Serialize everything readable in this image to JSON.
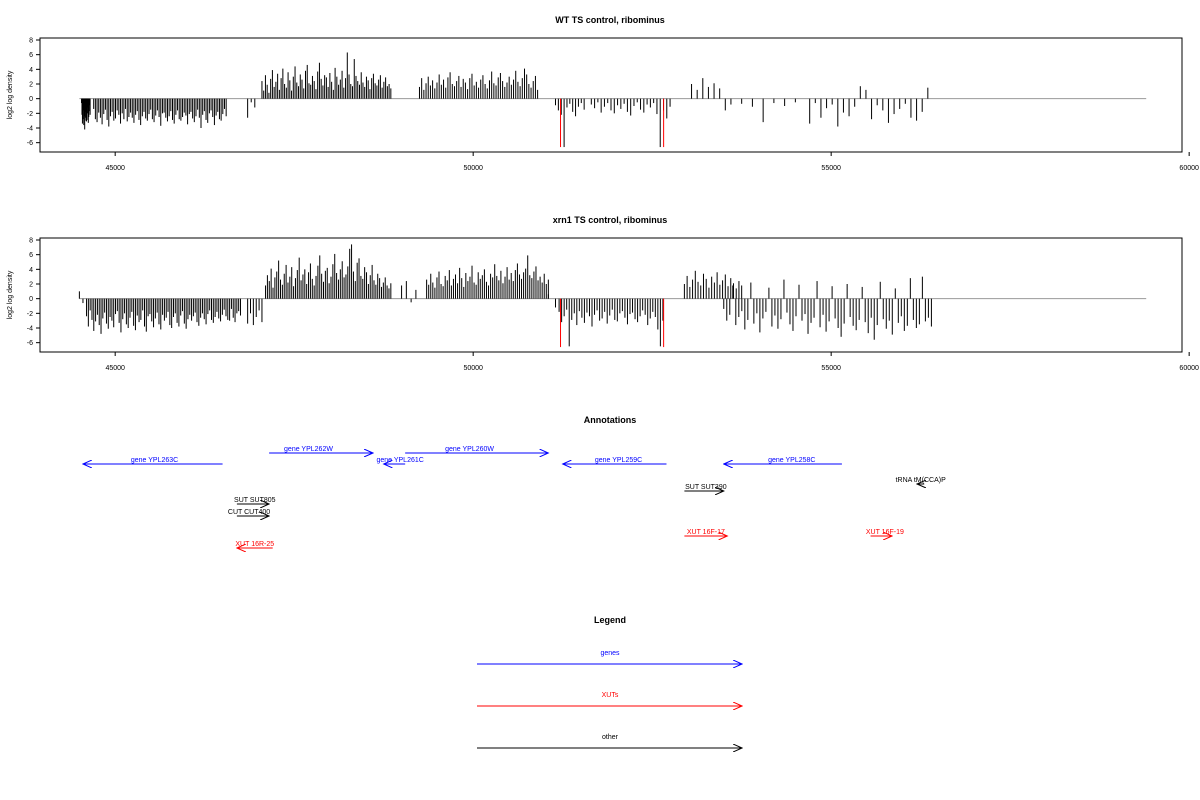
{
  "chart_data": [
    {
      "type": "bar",
      "title": "WT TS control, ribominus",
      "ylabel": "log2 log density",
      "xlabel": "",
      "xlim": [
        43950,
        59900
      ],
      "ylim": [
        -7,
        8
      ],
      "xticks": [
        45000,
        50000,
        55000,
        60000
      ],
      "yticks": [
        -6,
        -4,
        -2,
        0,
        2,
        4,
        6,
        8
      ],
      "baseline_x": [
        44500,
        59400
      ],
      "series": [
        {
          "x_start": 44530,
          "x_end": 44650,
          "values": [
            -0.6,
            -2.2,
            -3.4,
            -2.8,
            -1.6,
            -3.6,
            -2.4,
            -4.2,
            -3.0,
            -1.8,
            -2.6,
            -3.1,
            -2.0,
            -1.2,
            -2.9,
            -3.3,
            -2.5,
            -1.7,
            -0.9,
            -2.2
          ]
        },
        {
          "x_start": 44700,
          "x_end": 46550,
          "values": [
            -1.4,
            -2.8,
            -3.2,
            -1.9,
            -2.6,
            -3.5,
            -2.1,
            -1.5,
            -2.9,
            -3.8,
            -2.4,
            -1.8,
            -3.0,
            -2.7,
            -1.6,
            -2.2,
            -3.4,
            -2.0,
            -2.8,
            -1.4,
            -3.1,
            -2.5,
            -1.9,
            -2.6,
            -3.3,
            -2.2,
            -1.7,
            -2.9,
            -3.6,
            -2.4,
            -1.8,
            -2.7,
            -3.0,
            -2.1,
            -1.5,
            -2.8,
            -3.2,
            -2.3,
            -1.6,
            -2.5,
            -3.7,
            -2.0,
            -1.9,
            -2.6,
            -3.1,
            -2.4,
            -1.7,
            -2.9,
            -3.4,
            -2.2,
            -1.6,
            -2.8,
            -3.0,
            -2.5,
            -1.9,
            -2.3,
            -3.5,
            -2.1,
            -1.8,
            -2.7,
            -3.2,
            -2.4,
            -1.5,
            -2.6,
            -4.0,
            -2.2,
            -1.7,
            -2.9,
            -3.3,
            -2.0,
            -1.6,
            -2.5,
            -3.6,
            -2.3,
            -1.8,
            -2.8,
            -3.0,
            -2.1,
            -1.4,
            -2.4
          ]
        },
        {
          "x_start": 46850,
          "x_end": 46950,
          "values": [
            -2.6,
            -0.5,
            -1.2
          ]
        },
        {
          "x_start": 47050,
          "x_end": 48850,
          "values": [
            2.4,
            1.1,
            3.2,
            1.9,
            0.8,
            2.7,
            3.9,
            1.6,
            2.3,
            3.4,
            1.2,
            2.8,
            4.1,
            2.0,
            1.5,
            3.6,
            2.5,
            1.1,
            3.0,
            4.4,
            2.2,
            1.7,
            3.3,
            2.6,
            1.4,
            3.8,
            4.6,
            2.1,
            1.9,
            3.1,
            2.4,
            1.3,
            3.7,
            4.9,
            2.7,
            1.8,
            3.2,
            2.9,
            1.6,
            3.5,
            2.3,
            1.2,
            4.2,
            3.0,
            1.9,
            2.6,
            3.8,
            1.5,
            2.8,
            6.3,
            3.3,
            2.0,
            1.7,
            5.4,
            3.1,
            2.4,
            1.9,
            3.6,
            2.2,
            1.6,
            3.0,
            2.5,
            1.3,
            2.8,
            3.4,
            2.1,
            1.8,
            2.6,
            3.2,
            1.5,
            2.3,
            2.9,
            1.7,
            2.0,
            1.4
          ]
        },
        {
          "x_start": 49250,
          "x_end": 50900,
          "values": [
            1.6,
            2.8,
            1.2,
            2.1,
            3.0,
            1.8,
            2.5,
            1.4,
            2.2,
            3.3,
            1.9,
            2.6,
            1.5,
            2.9,
            3.6,
            2.0,
            1.7,
            2.4,
            3.1,
            1.6,
            2.7,
            2.2,
            1.3,
            2.8,
            3.4,
            1.8,
            2.3,
            1.5,
            2.6,
            3.2,
            2.0,
            1.4,
            2.5,
            3.7,
            2.1,
            1.8,
            2.9,
            3.5,
            2.4,
            1.6,
            2.2,
            3.0,
            1.9,
            2.6,
            3.8,
            2.3,
            1.7,
            2.8,
            4.1,
            3.3,
            2.0,
            1.5,
            2.4,
            3.1,
            1.2
          ]
        },
        {
          "x_start": 51150,
          "x_end": 51550,
          "values": [
            -0.9,
            -1.6,
            -2.2,
            -6.6,
            -1.2,
            -0.7,
            -1.8,
            -2.4,
            -1.1,
            -0.6,
            -1.5
          ]
        },
        {
          "x_start": 51650,
          "x_end": 52750,
          "values": [
            -0.8,
            -1.3,
            -0.5,
            -1.9,
            -1.1,
            -0.6,
            -1.6,
            -2.0,
            -0.9,
            -1.4,
            -0.7,
            -1.8,
            -2.3,
            -1.0,
            -0.5,
            -1.5,
            -1.9,
            -0.8,
            -1.2,
            -0.6,
            -2.1,
            -6.6,
            -1.6,
            -2.7,
            -1.1
          ]
        },
        {
          "x_start": 53050,
          "x_end": 53600,
          "values": [
            2.0,
            1.2,
            2.8,
            1.6,
            2.1,
            1.4,
            -1.6,
            -0.8
          ]
        },
        {
          "x_start": 53750,
          "x_end": 54500,
          "values": [
            -0.7,
            -1.1,
            -3.2,
            -0.6,
            -1.0,
            -0.5
          ]
        },
        {
          "x_start": 54700,
          "x_end": 56350,
          "values": [
            -3.4,
            -0.6,
            -2.6,
            -1.3,
            -0.8,
            -3.8,
            -1.9,
            -2.4,
            -1.1,
            1.7,
            1.2,
            -2.8,
            -0.9,
            -1.6,
            -3.3,
            -2.1,
            -1.4,
            -0.7,
            -2.6,
            -3.0,
            -1.8,
            1.5
          ]
        }
      ],
      "highlight_bars": {
        "color": "#ff0000",
        "x": [
          51220,
          52660
        ],
        "values": [
          -6.6,
          -6.6
        ]
      }
    },
    {
      "type": "bar",
      "title": "xrn1 TS control, ribominus",
      "ylabel": "log2 log density",
      "xlabel": "",
      "xlim": [
        43950,
        59900
      ],
      "ylim": [
        -7,
        8
      ],
      "xticks": [
        45000,
        50000,
        55000,
        60000
      ],
      "yticks": [
        -6,
        -4,
        -2,
        0,
        2,
        4,
        6,
        8
      ],
      "baseline_x": [
        44500,
        59400
      ],
      "series": [
        {
          "x_start": 44500,
          "x_end": 44550,
          "values": [
            1.0,
            -0.6
          ]
        },
        {
          "x_start": 44600,
          "x_end": 46750,
          "values": [
            -2.4,
            -3.8,
            -1.6,
            -2.9,
            -4.4,
            -3.1,
            -2.2,
            -3.6,
            -4.8,
            -2.7,
            -1.9,
            -3.4,
            -4.1,
            -2.5,
            -3.0,
            -3.9,
            -2.1,
            -1.7,
            -3.3,
            -4.6,
            -2.8,
            -2.0,
            -3.5,
            -4.0,
            -2.6,
            -1.8,
            -3.7,
            -4.3,
            -2.3,
            -3.2,
            -2.9,
            -1.6,
            -3.8,
            -4.5,
            -2.4,
            -2.1,
            -3.1,
            -3.9,
            -2.7,
            -1.9,
            -3.5,
            -4.2,
            -2.2,
            -3.0,
            -2.6,
            -1.8,
            -3.6,
            -4.0,
            -2.5,
            -2.0,
            -3.3,
            -3.8,
            -2.3,
            -1.7,
            -3.4,
            -4.1,
            -2.8,
            -2.2,
            -3.0,
            -2.4,
            -1.9,
            -3.2,
            -3.7,
            -2.6,
            -2.0,
            -2.8,
            -3.5,
            -2.1,
            -1.6,
            -2.9,
            -3.3,
            -2.5,
            -1.8,
            -2.7,
            -3.1,
            -2.2,
            -1.5,
            -2.4,
            -2.9,
            -3.0,
            -1.4,
            -2.6,
            -3.2,
            -2.0,
            -1.7,
            -2.3
          ]
        },
        {
          "x_start": 46850,
          "x_end": 47050,
          "values": [
            -3.4,
            -2.0,
            -3.6,
            -2.5,
            -1.6,
            -3.2
          ]
        },
        {
          "x_start": 47100,
          "x_end": 48850,
          "values": [
            1.8,
            3.2,
            2.4,
            4.1,
            1.5,
            2.9,
            3.7,
            5.2,
            2.6,
            1.9,
            3.4,
            4.6,
            2.2,
            3.0,
            4.3,
            1.7,
            2.8,
            3.9,
            5.6,
            2.5,
            3.3,
            4.0,
            2.0,
            3.6,
            4.8,
            2.7,
            1.8,
            3.1,
            4.5,
            5.9,
            3.4,
            2.3,
            3.8,
            4.2,
            2.1,
            3.0,
            4.7,
            6.1,
            3.5,
            2.6,
            4.0,
            5.1,
            2.9,
            3.3,
            4.4,
            6.8,
            7.4,
            3.7,
            2.4,
            4.9,
            5.5,
            3.1,
            2.7,
            4.3,
            3.6,
            2.0,
            3.2,
            4.6,
            2.5,
            1.9,
            3.4,
            2.8,
            1.6,
            2.2,
            2.9,
            1.8,
            1.4,
            2.1
          ]
        },
        {
          "x_start": 49000,
          "x_end": 49200,
          "values": [
            1.8,
            2.4,
            -0.5,
            1.2
          ]
        },
        {
          "x_start": 49350,
          "x_end": 51050,
          "values": [
            2.6,
            1.9,
            3.4,
            2.2,
            1.5,
            2.9,
            3.7,
            2.0,
            1.7,
            3.1,
            2.5,
            3.9,
            1.8,
            2.7,
            3.3,
            2.1,
            4.2,
            2.8,
            1.6,
            3.5,
            2.4,
            3.0,
            4.5,
            2.2,
            1.9,
            3.6,
            2.7,
            3.2,
            4.0,
            2.3,
            1.8,
            3.4,
            2.9,
            4.7,
            3.1,
            2.5,
            3.8,
            2.1,
            3.0,
            4.3,
            2.6,
            3.5,
            2.4,
            3.9,
            4.8,
            3.3,
            2.7,
            3.6,
            4.1,
            5.9,
            3.2,
            2.8,
            3.7,
            4.4,
            2.5,
            3.0,
            2.2,
            3.4,
            2.0,
            2.6
          ]
        },
        {
          "x_start": 51050,
          "x_end": 51150,
          "values": [
            0.6,
            -1.2
          ]
        },
        {
          "x_start": 51200,
          "x_end": 52650,
          "values": [
            -1.8,
            -3.2,
            -2.4,
            -1.5,
            -6.5,
            -2.9,
            -2.0,
            -3.6,
            -1.7,
            -2.6,
            -3.3,
            -1.9,
            -2.4,
            -3.8,
            -2.2,
            -1.6,
            -3.0,
            -2.7,
            -1.8,
            -3.4,
            -2.3,
            -1.5,
            -2.9,
            -3.1,
            -2.0,
            -1.7,
            -2.6,
            -3.5,
            -2.1,
            -1.9,
            -2.8,
            -3.2,
            -2.4,
            -1.6,
            -2.2,
            -3.6,
            -2.7,
            -1.8,
            -2.5,
            -4.2,
            -6.5,
            -3.0
          ]
        },
        {
          "x_start": 52950,
          "x_end": 53750,
          "values": [
            2.0,
            3.1,
            1.6,
            2.6,
            3.8,
            2.3,
            1.8,
            3.4,
            2.7,
            1.5,
            3.0,
            2.2,
            3.6,
            1.9,
            2.5,
            3.3,
            1.7,
            2.8,
            2.1,
            1.4,
            2.4,
            1.8
          ]
        },
        {
          "x_start": 53500,
          "x_end": 56400,
          "values": [
            -1.4,
            -3.0,
            -2.2,
            1.8,
            -3.6,
            -2.5,
            -1.7,
            -4.2,
            -2.9,
            2.2,
            -3.4,
            -2.0,
            -4.6,
            -2.7,
            -1.8,
            1.5,
            -3.8,
            -2.3,
            -4.1,
            -2.8,
            2.6,
            -1.9,
            -3.5,
            -4.4,
            -2.4,
            1.9,
            -3.0,
            -2.1,
            -4.8,
            -3.3,
            -2.6,
            2.4,
            -3.9,
            -2.2,
            -4.5,
            -3.1,
            1.7,
            -2.7,
            -4.0,
            -5.2,
            -3.4,
            2.0,
            -2.5,
            -3.7,
            -4.3,
            -2.9,
            1.6,
            -3.2,
            -4.7,
            -2.6,
            -5.6,
            -3.6,
            2.3,
            -2.8,
            -4.1,
            -3.0,
            -4.9,
            1.4,
            -3.3,
            -2.4,
            -4.4,
            -3.7,
            2.8,
            -2.9,
            -4.0,
            -3.5,
            3.0,
            -3.1,
            -2.6,
            -3.8
          ]
        }
      ],
      "highlight_bars": {
        "color": "#ff0000",
        "x": [
          51220,
          52660
        ],
        "values": [
          -6.6,
          -6.6
        ]
      }
    }
  ],
  "annotations": {
    "title": "Annotations",
    "features": [
      {
        "label": "gene YPL263C",
        "start": 46500,
        "end": 44550,
        "row": 1,
        "color": "#0000ff",
        "labelx": 45550
      },
      {
        "label": "gene YPL262W",
        "start": 47150,
        "end": 48600,
        "row": 0,
        "color": "#0000ff",
        "labelx": 47700
      },
      {
        "label": "gene YPL261C",
        "start": 49050,
        "end": 48750,
        "row": 1,
        "color": "#0000ff",
        "labelx": 48980
      },
      {
        "label": "gene YPL260W",
        "start": 49050,
        "end": 51050,
        "row": 0,
        "color": "#0000ff",
        "labelx": 49950
      },
      {
        "label": "gene YPL259C",
        "start": 52700,
        "end": 51250,
        "row": 1,
        "color": "#0000ff",
        "labelx": 52030
      },
      {
        "label": "gene YPL258C",
        "start": 55150,
        "end": 53500,
        "row": 1,
        "color": "#0000ff",
        "labelx": 54450
      },
      {
        "label": "tRNA tM(CCA)P",
        "start": 56300,
        "end": 56200,
        "row": 2,
        "color": "#000000",
        "labelx": 56250
      },
      {
        "label": "SUT SUT390",
        "start": 52950,
        "end": 53500,
        "row": 3,
        "color": "#000000",
        "labelx": 53250
      },
      {
        "label": "SUT SUT805",
        "start": 46700,
        "end": 47150,
        "row": 4,
        "color": "#000000",
        "labelx": 46950
      },
      {
        "label": "CUT CUT400",
        "start": 46700,
        "end": 47150,
        "row": 5,
        "color": "#000000",
        "labelx": 46870
      },
      {
        "label": "XUT 16F-17",
        "start": 52950,
        "end": 53550,
        "row": 6,
        "color": "#ff0000",
        "labelx": 53250
      },
      {
        "label": "XUT 16F-19",
        "start": 55550,
        "end": 55850,
        "row": 6,
        "color": "#ff0000",
        "labelx": 55750
      },
      {
        "label": "XUT 16R-25",
        "start": 47200,
        "end": 46700,
        "row": 7,
        "color": "#ff0000",
        "labelx": 46950
      }
    ]
  },
  "legend": {
    "title": "Legend",
    "items": [
      {
        "label": "genes",
        "color": "#0000ff"
      },
      {
        "label": "XUTs",
        "color": "#ff0000"
      },
      {
        "label": "other",
        "color": "#000000"
      }
    ]
  }
}
